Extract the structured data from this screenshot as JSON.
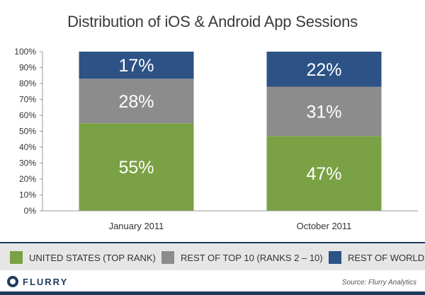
{
  "chart_data": {
    "type": "bar",
    "stacked": true,
    "percent": true,
    "title": "Distribution of iOS & Android App Sessions",
    "categories": [
      "January 2011",
      "October 2011"
    ],
    "series": [
      {
        "name": "UNITED STATES (TOP RANK)",
        "values": [
          55,
          47
        ],
        "labels": [
          "55%",
          "47%"
        ],
        "color": "#7aa144"
      },
      {
        "name": "REST OF TOP 10 (RANKS 2 – 10)",
        "values": [
          28,
          31
        ],
        "labels": [
          "28%",
          "31%"
        ],
        "color": "#8c8c8c"
      },
      {
        "name": "REST OF WORLD",
        "values": [
          17,
          22
        ],
        "labels": [
          "17%",
          "22%"
        ],
        "color": "#2c5286"
      }
    ],
    "y_ticks": [
      "0%",
      "10%",
      "20%",
      "30%",
      "40%",
      "50%",
      "60%",
      "70%",
      "80%",
      "90%",
      "100%"
    ],
    "ylim": [
      0,
      100
    ],
    "grid": false,
    "legend_position": "bottom"
  },
  "footer": {
    "logo": "FLURRY",
    "source": "Source: Flurry Analytics"
  }
}
